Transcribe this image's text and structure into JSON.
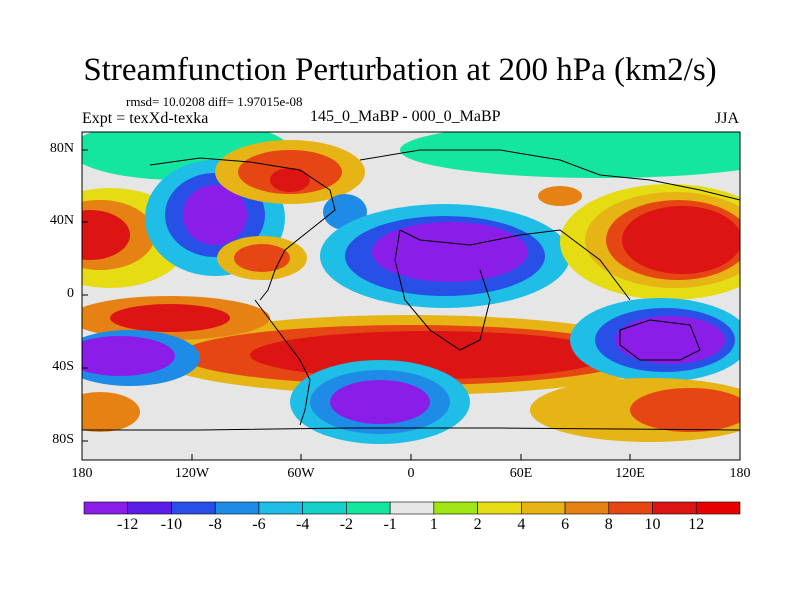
{
  "header": {
    "title": "Streamfunction Perturbation at 200 hPa (km2/s)",
    "stats": "rmsd= 10.0208 diff= 1.97015e-08",
    "experiment": "Expt = texXd-texka",
    "comparison": "145_0_MaBP - 000_0_MaBP",
    "season": "JJA"
  },
  "axes": {
    "y_ticks": [
      "80N",
      "40N",
      "0",
      "40S",
      "80S"
    ],
    "x_ticks": [
      "180",
      "120W",
      "60W",
      "0",
      "60E",
      "120E",
      "180"
    ]
  },
  "colorbar": {
    "labels": [
      "-12",
      "-10",
      "-8",
      "-6",
      "-4",
      "-2",
      "-1",
      "1",
      "2",
      "4",
      "6",
      "8",
      "10",
      "12"
    ],
    "colors": [
      "#8a1ee8",
      "#5a1ee8",
      "#2850e6",
      "#1e8ce6",
      "#1ebee6",
      "#14d2c8",
      "#14e6a0",
      "#e6e6e6",
      "#a0e614",
      "#e6dc14",
      "#e6b414",
      "#e68214",
      "#e64614",
      "#dc1414",
      "#e60000"
    ]
  },
  "map": {
    "projection": "cylindrical-equidistant",
    "lon_range": [
      -180,
      180
    ],
    "lat_range": [
      -90,
      90
    ],
    "field": "streamfunction perturbation",
    "units": "km2/s"
  }
}
